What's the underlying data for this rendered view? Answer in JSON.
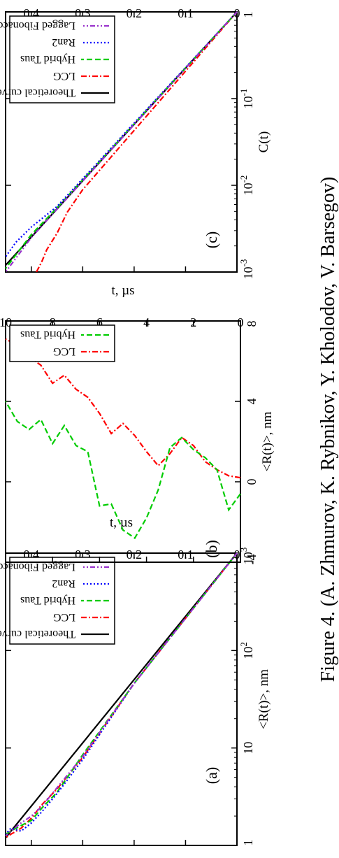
{
  "caption": "Figure 4. (A. Zhmurov, K. Rybnikov, Y. Kholodov, V. Barsegov)",
  "colors": {
    "theoretical": "#000000",
    "lcg": "#ff0000",
    "hybrid_taus": "#00cc00",
    "ran2": "#0000ff",
    "lagged_fibonacci": "#9933cc"
  },
  "chart_data": [
    {
      "panel": "(a)",
      "type": "line",
      "yscale": "log",
      "xlabel": "t, µs",
      "ylabel": "<R(t)>, nm",
      "xlim": [
        0,
        0.45
      ],
      "ylim": [
        1,
        1000
      ],
      "xticks": [
        "0",
        "0.1",
        "0.2",
        "0.3",
        "0.4"
      ],
      "yticks": [
        {
          "base": "1",
          "exp": ""
        },
        {
          "base": "10",
          "exp": ""
        },
        {
          "base": "10",
          "exp": "2"
        },
        {
          "base": "10",
          "exp": "3"
        }
      ],
      "legend_position": "top-right",
      "series": [
        {
          "name": "Theoretical curve",
          "style": "solid",
          "x": [
            0,
            0.45
          ],
          "y": [
            1000,
            1.2
          ]
        },
        {
          "name": "LCG",
          "style": "dash-dot",
          "x": [
            0,
            0.2,
            0.3,
            0.35,
            0.38,
            0.4,
            0.42,
            0.44,
            0.45
          ],
          "y": [
            1000,
            46,
            8,
            3.8,
            2.6,
            1.9,
            1.5,
            1.3,
            1.2
          ]
        },
        {
          "name": "Hybrid Taus",
          "style": "dashed",
          "x": [
            0,
            0.2,
            0.3,
            0.35,
            0.38,
            0.4,
            0.42,
            0.44,
            0.45
          ],
          "y": [
            1000,
            46,
            8.5,
            3.5,
            2.4,
            1.8,
            1.6,
            1.4,
            1.3
          ]
        },
        {
          "name": "Ran2",
          "style": "dotted",
          "x": [
            0,
            0.2,
            0.3,
            0.35,
            0.38,
            0.4,
            0.42,
            0.44,
            0.45
          ],
          "y": [
            1000,
            46,
            7.6,
            3.4,
            2.2,
            1.7,
            1.4,
            1.5,
            1.3
          ]
        },
        {
          "name": "Lagged Fibonacci",
          "style": "dash-dot-dot",
          "x": [
            0,
            0.2,
            0.3,
            0.35,
            0.38,
            0.4,
            0.42,
            0.44,
            0.45
          ],
          "y": [
            1000,
            46,
            8.2,
            3.9,
            2.5,
            2.0,
            1.7,
            1.4,
            1.25
          ]
        }
      ]
    },
    {
      "panel": "(b)",
      "type": "line",
      "xlabel": "t, µs",
      "ylabel": "<R(t)>, nm",
      "xlim": [
        0,
        10
      ],
      "ylim": [
        -4,
        8
      ],
      "xticks": [
        "0",
        "2",
        "4",
        "6",
        "8",
        "10"
      ],
      "yticks": [
        "-4",
        "0",
        "4",
        "8"
      ],
      "legend_position": "top-right",
      "series": [
        {
          "name": "LCG",
          "style": "dash-dot",
          "x": [
            0,
            0.5,
            1,
            1.5,
            2,
            2.5,
            3,
            3.5,
            4,
            4.5,
            5,
            5.5,
            6,
            6.5,
            7,
            7.5,
            8,
            8.5,
            9,
            9.5,
            10
          ],
          "y": [
            0.2,
            0.3,
            0.6,
            1.0,
            1.8,
            2.2,
            1.4,
            0.8,
            1.5,
            2.3,
            2.9,
            2.4,
            3.4,
            4.2,
            4.6,
            5.3,
            4.9,
            5.8,
            6.2,
            6.8,
            7.1
          ]
        },
        {
          "name": "Hybrid Taus",
          "style": "dashed",
          "x": [
            0,
            0.5,
            1,
            1.5,
            2,
            2.5,
            3,
            3.5,
            4,
            4.5,
            5,
            5.5,
            6,
            6.5,
            7,
            7.5,
            8,
            8.5,
            9,
            9.5,
            10
          ],
          "y": [
            -0.6,
            -1.4,
            0.6,
            1.2,
            1.6,
            2.2,
            1.7,
            -0.4,
            -1.8,
            -2.8,
            -2.4,
            -1.1,
            -1.2,
            1.5,
            1.8,
            2.8,
            1.9,
            3.1,
            2.6,
            3.0,
            4.0
          ]
        }
      ]
    },
    {
      "panel": "(c)",
      "type": "line",
      "yscale": "log",
      "xlabel": "t, µs",
      "ylabel": "C(t)",
      "xlim": [
        0,
        0.45
      ],
      "ylim": [
        0.001,
        1
      ],
      "xticks": [
        "0",
        "0.1",
        "0.2",
        "0.3",
        "0.4"
      ],
      "yticks": [
        {
          "base": "1",
          "exp": ""
        },
        {
          "base": "10",
          "exp": "-1"
        },
        {
          "base": "10",
          "exp": "-2"
        },
        {
          "base": "10",
          "exp": "-3"
        }
      ],
      "legend_position": "top-right",
      "series": [
        {
          "name": "Theoretical curve",
          "style": "solid",
          "x": [
            0,
            0.45
          ],
          "y": [
            1,
            0.0012
          ]
        },
        {
          "name": "LCG",
          "style": "dash-dot",
          "x": [
            0,
            0.3,
            0.33,
            0.35,
            0.37,
            0.38,
            0.39
          ],
          "y": [
            1,
            0.0089,
            0.0049,
            0.0028,
            0.0018,
            0.0013,
            0.001
          ]
        },
        {
          "name": "Hybrid Taus",
          "style": "dashed",
          "x": [
            0,
            0.35,
            0.4,
            0.45
          ],
          "y": [
            1,
            0.0055,
            0.0027,
            0.0011
          ]
        },
        {
          "name": "Ran2",
          "style": "dotted",
          "x": [
            0,
            0.35,
            0.4,
            0.43,
            0.45
          ],
          "y": [
            1,
            0.0057,
            0.0033,
            0.0022,
            0.0015
          ]
        },
        {
          "name": "Lagged Fibonacci",
          "style": "dash-dot-dot",
          "x": [
            0,
            0.35,
            0.4,
            0.45
          ],
          "y": [
            1,
            0.0053,
            0.0025,
            0.001
          ]
        }
      ]
    }
  ]
}
